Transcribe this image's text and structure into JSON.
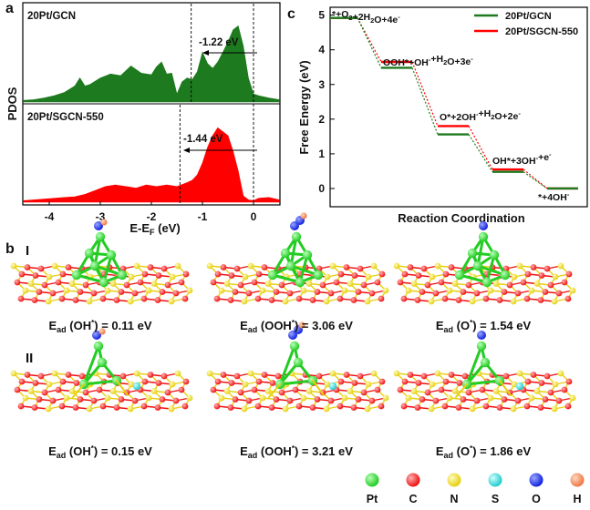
{
  "panel_labels": {
    "a": "a",
    "b": "b",
    "c": "c"
  },
  "chart_data": [
    {
      "type": "area",
      "panel": "a",
      "ylabel": "PDOS",
      "xlabel_main": "E-E",
      "xlabel_sub": "F",
      "xlabel_unit": " (eV)",
      "xlim": [
        -4.5,
        0.5
      ],
      "xticks": [
        -4,
        -3,
        -2,
        -1,
        0
      ],
      "xtick_labels": [
        "-4",
        "-3",
        "-2",
        "-1",
        "0"
      ],
      "fermi_level": 0,
      "series": [
        {
          "name": "20Pt/GCN",
          "color": "#1e7a1e",
          "d_band_center": -1.22,
          "annotation": "-1.22 eV",
          "x": [
            -4.5,
            -4.3,
            -4.1,
            -3.9,
            -3.7,
            -3.5,
            -3.4,
            -3.3,
            -3.2,
            -3.0,
            -2.8,
            -2.6,
            -2.4,
            -2.2,
            -2.0,
            -1.9,
            -1.8,
            -1.7,
            -1.6,
            -1.5,
            -1.4,
            -1.3,
            -1.2,
            -1.1,
            -1.0,
            -0.9,
            -0.8,
            -0.7,
            -0.6,
            -0.5,
            -0.4,
            -0.3,
            -0.2,
            -0.1,
            0.0,
            0.1,
            0.3,
            0.5
          ],
          "y": [
            0.02,
            0.03,
            0.05,
            0.08,
            0.12,
            0.2,
            0.3,
            0.2,
            0.22,
            0.3,
            0.35,
            0.33,
            0.45,
            0.36,
            0.34,
            0.44,
            0.5,
            0.35,
            0.36,
            0.1,
            0.25,
            0.3,
            0.28,
            0.38,
            0.62,
            0.48,
            0.42,
            0.5,
            0.62,
            0.75,
            0.9,
            0.95,
            0.7,
            0.3,
            0.1,
            0.08,
            0.05,
            0.03
          ]
        },
        {
          "name": "20Pt/SGCN-550",
          "color": "#ff0000",
          "d_band_center": -1.44,
          "annotation": "-1.44 eV",
          "x": [
            -4.5,
            -4.3,
            -4.1,
            -3.9,
            -3.7,
            -3.5,
            -3.3,
            -3.1,
            -2.9,
            -2.7,
            -2.5,
            -2.3,
            -2.1,
            -1.9,
            -1.7,
            -1.5,
            -1.3,
            -1.2,
            -1.1,
            -1.0,
            -0.9,
            -0.8,
            -0.7,
            -0.6,
            -0.5,
            -0.4,
            -0.3,
            -0.2,
            -0.1,
            0.0,
            0.1,
            0.3,
            0.5
          ],
          "y": [
            0.02,
            0.03,
            0.04,
            0.05,
            0.06,
            0.07,
            0.1,
            0.15,
            0.2,
            0.22,
            0.2,
            0.18,
            0.22,
            0.2,
            0.22,
            0.2,
            0.25,
            0.28,
            0.35,
            0.5,
            0.7,
            0.85,
            0.95,
            0.9,
            0.85,
            0.65,
            0.4,
            0.08,
            0.03,
            0.02,
            0.05,
            0.06,
            0.03
          ]
        }
      ]
    },
    {
      "type": "line",
      "panel": "c",
      "ylabel": "Free Energy (eV)",
      "xlabel": "Reaction Coordination",
      "ylim": [
        -0.5,
        5.2
      ],
      "yticks": [
        0,
        1,
        2,
        3,
        4,
        5
      ],
      "categories": [
        "*+O2+2H2O+4e-",
        "OOH*+OH-+H2O+3e-",
        "O*+2OH-+H2O+2e-",
        "OH*+3OH-+e-",
        "*+4OH-"
      ],
      "legend_position": "top-right",
      "series": [
        {
          "name": "20Pt/GCN",
          "color": "#1e7a1e",
          "values": [
            4.92,
            3.48,
            1.56,
            0.48,
            0.0
          ]
        },
        {
          "name": "20Pt/SGCN-550",
          "color": "#ff0000",
          "values": [
            4.92,
            3.65,
            1.8,
            0.55,
            0.0
          ]
        }
      ]
    }
  ],
  "panel_c_step_labels": [
    {
      "parts": [
        [
          "*+O",
          ""
        ],
        [
          "2",
          "sub"
        ],
        [
          "+2H",
          ""
        ],
        [
          "2",
          "sub"
        ],
        [
          "O+4e",
          ""
        ],
        [
          "-",
          "sup"
        ]
      ]
    },
    {
      "parts": [
        [
          "OOH*+OH",
          ""
        ],
        [
          "-",
          "sup"
        ],
        [
          "+H",
          ""
        ],
        [
          "2",
          "sub"
        ],
        [
          "O+3e",
          ""
        ],
        [
          "-",
          "sup"
        ]
      ]
    },
    {
      "parts": [
        [
          "O*+2OH",
          ""
        ],
        [
          "-",
          "sup"
        ],
        [
          "+H",
          ""
        ],
        [
          "2",
          "sub"
        ],
        [
          "O+2e",
          ""
        ],
        [
          "-",
          "sup"
        ]
      ]
    },
    {
      "parts": [
        [
          "OH*+3OH",
          ""
        ],
        [
          "-",
          "sup"
        ],
        [
          "+e",
          ""
        ],
        [
          "-",
          "sup"
        ]
      ]
    },
    {
      "parts": [
        [
          "*+4OH",
          ""
        ],
        [
          "-",
          "sup"
        ]
      ]
    }
  ],
  "row_labels": {
    "I": "I",
    "II": "II"
  },
  "adsorption_energies": {
    "row1": [
      {
        "adsorbate": "OH",
        "value": "0.11 eV"
      },
      {
        "adsorbate": "OOH",
        "value": "3.06 eV"
      },
      {
        "adsorbate": "O",
        "value": "1.54 eV"
      }
    ],
    "row2": [
      {
        "adsorbate": "OH",
        "value": "0.15 eV"
      },
      {
        "adsorbate": "OOH",
        "value": "3.21 eV"
      },
      {
        "adsorbate": "O",
        "value": "1.86 eV"
      }
    ]
  },
  "atom_legend": [
    {
      "symbol": "Pt",
      "color": "#22cc22"
    },
    {
      "symbol": "C",
      "color": "#ee1111"
    },
    {
      "symbol": "N",
      "color": "#f2e21a"
    },
    {
      "symbol": "S",
      "color": "#33dddd"
    },
    {
      "symbol": "O",
      "color": "#1122dd"
    },
    {
      "symbol": "H",
      "color": "#ee8855"
    }
  ]
}
